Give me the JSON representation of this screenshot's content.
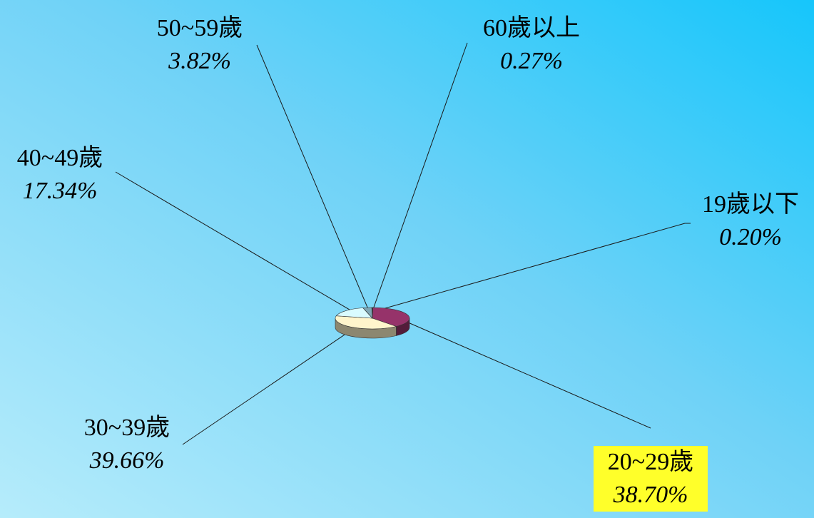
{
  "chart_data": {
    "type": "pie",
    "categories": [
      "19歲以下",
      "20~29歲",
      "30~39歲",
      "40~49歲",
      "50~59歲",
      "60歲以上"
    ],
    "values": [
      0.2,
      38.7,
      39.66,
      17.34,
      3.82,
      0.27
    ],
    "value_labels": [
      "0.20%",
      "38.70%",
      "39.66%",
      "17.34%",
      "3.82%",
      "0.27%"
    ],
    "colors": [
      "#2b6e9e",
      "#96336a",
      "#fff5cc",
      "#d9fbff",
      "#7fa6b4",
      "#6a1c40"
    ],
    "highlighted": "20~29歲",
    "highlight_color": "#ffff2a",
    "style": "3d-tilted",
    "legend": "none"
  }
}
